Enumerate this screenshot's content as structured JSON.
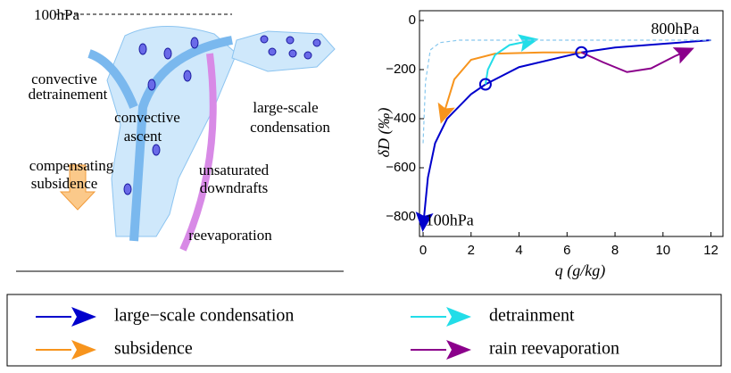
{
  "diagram": {
    "labels": [
      {
        "lines": [
          "100hPa"
        ]
      },
      {
        "lines": [
          "convective",
          "detrainement"
        ]
      },
      {
        "lines": [
          "convective",
          "ascent"
        ]
      },
      {
        "lines": [
          "large-scale",
          "condensation"
        ]
      },
      {
        "lines": [
          "compensating",
          "subsidence"
        ]
      },
      {
        "lines": [
          "unsaturated",
          "downdrafts"
        ]
      },
      {
        "lines": [
          "reevaporation"
        ]
      }
    ]
  },
  "chart_data": {
    "type": "line",
    "xlabel": "q (g/kg)",
    "ylabel": "δD (‰)",
    "xlim": [
      -0.15,
      12.5
    ],
    "ylim": [
      -880,
      40
    ],
    "xticks": [
      0,
      2,
      4,
      6,
      8,
      10,
      12
    ],
    "yticks": [
      0,
      {
        "value": -200,
        "label": "−200"
      },
      {
        "value": -400,
        "label": "−400"
      },
      {
        "value": -600,
        "label": "−600"
      },
      {
        "value": -800,
        "label": "−800"
      }
    ],
    "annotations": [
      {
        "text": "800hPa",
        "x": 9.5,
        "y": -40
      },
      {
        "text": "100hPa",
        "x": 0.1,
        "y": -820
      }
    ],
    "points": {
      "x": [
        2.6,
        6.6
      ],
      "values": [
        -260,
        -130
      ],
      "color": "#0000cc"
    },
    "series": [
      {
        "name": "large−scale condensation",
        "color": "#0000cc",
        "arrow": true,
        "x": [
          12,
          10,
          8,
          6.6,
          4,
          2.6,
          2,
          1,
          0.5,
          0.2,
          0
        ],
        "values": [
          -80,
          -95,
          -110,
          -130,
          -190,
          -260,
          -300,
          -400,
          -500,
          -640,
          -840
        ]
      },
      {
        "name": "subsidence",
        "color": "#f7941d",
        "arrow": true,
        "x": [
          6.6,
          5,
          3,
          2,
          1.3,
          0.8
        ],
        "values": [
          -130,
          -130,
          -135,
          -160,
          -240,
          -400
        ]
      },
      {
        "name": "detrainment",
        "color": "#22dde8",
        "arrow": true,
        "x": [
          2.6,
          2.7,
          3,
          3.6,
          4.6
        ],
        "values": [
          -260,
          -200,
          -140,
          -100,
          -80
        ]
      },
      {
        "name": "rain reevaporation",
        "color": "#8b008b",
        "arrow": true,
        "x": [
          6.6,
          7.5,
          8.5,
          9.5,
          10.5,
          11.1
        ],
        "values": [
          -130,
          -170,
          -210,
          -195,
          -145,
          -120
        ]
      },
      {
        "color": "#88c8ee",
        "dashed": true,
        "x": [
          0,
          0.1,
          0.3,
          0.7,
          1.5,
          4,
          12
        ],
        "values": [
          -500,
          -250,
          -120,
          -90,
          -80,
          -80,
          -80
        ]
      }
    ]
  }
}
